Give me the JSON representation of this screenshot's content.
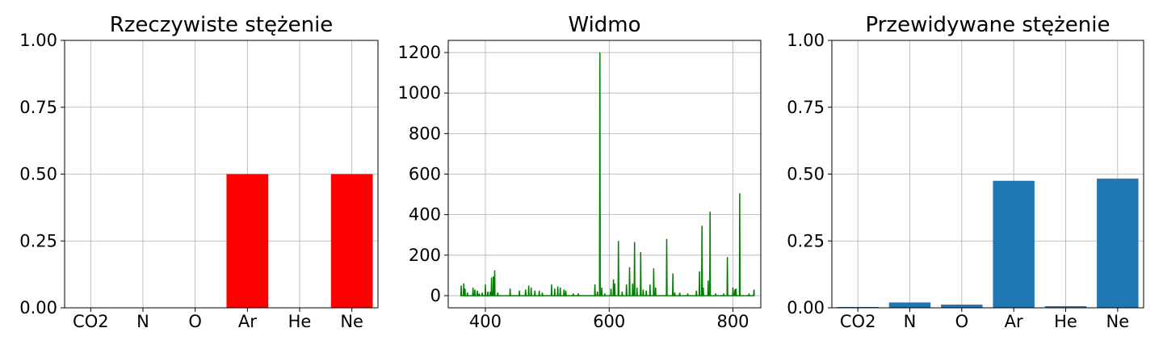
{
  "chart_data": [
    {
      "type": "bar",
      "title": "Rzeczywiste stężenie",
      "categories": [
        "CO2",
        "N",
        "O",
        "Ar",
        "He",
        "Ne"
      ],
      "values": [
        0,
        0,
        0,
        0.5,
        0,
        0.5
      ],
      "ylim": [
        0,
        1
      ],
      "yticks": [
        "0.00",
        "0.25",
        "0.50",
        "0.75",
        "1.00"
      ],
      "color": "#ff0000",
      "grid": true
    },
    {
      "type": "line",
      "title": "Widmo",
      "xlim": [
        340,
        845
      ],
      "ylim": [
        -60,
        1260
      ],
      "xticks": [
        400,
        600,
        800
      ],
      "yticks": [
        0,
        200,
        400,
        600,
        800,
        1000,
        1200
      ],
      "color": "#008000",
      "grid": true,
      "peaks": [
        [
          361,
          50
        ],
        [
          365,
          60
        ],
        [
          367,
          35
        ],
        [
          371,
          15
        ],
        [
          380,
          40
        ],
        [
          383,
          30
        ],
        [
          387,
          25
        ],
        [
          390,
          10
        ],
        [
          395,
          15
        ],
        [
          400,
          55
        ],
        [
          404,
          20
        ],
        [
          408,
          20
        ],
        [
          410,
          90
        ],
        [
          413,
          95
        ],
        [
          415,
          125
        ],
        [
          420,
          15
        ],
        [
          440,
          35
        ],
        [
          455,
          25
        ],
        [
          465,
          30
        ],
        [
          470,
          50
        ],
        [
          474,
          40
        ],
        [
          480,
          25
        ],
        [
          487,
          25
        ],
        [
          492,
          15
        ],
        [
          507,
          55
        ],
        [
          512,
          35
        ],
        [
          517,
          45
        ],
        [
          521,
          40
        ],
        [
          527,
          30
        ],
        [
          530,
          25
        ],
        [
          542,
          10
        ],
        [
          550,
          10
        ],
        [
          577,
          55
        ],
        [
          581,
          20
        ],
        [
          585,
          1200
        ],
        [
          588,
          40
        ],
        [
          593,
          10
        ],
        [
          603,
          35
        ],
        [
          607,
          80
        ],
        [
          609,
          60
        ],
        [
          615,
          270
        ],
        [
          621,
          20
        ],
        [
          628,
          55
        ],
        [
          633,
          140
        ],
        [
          638,
          60
        ],
        [
          641,
          265
        ],
        [
          645,
          40
        ],
        [
          651,
          215
        ],
        [
          655,
          30
        ],
        [
          660,
          25
        ],
        [
          666,
          55
        ],
        [
          672,
          135
        ],
        [
          675,
          40
        ],
        [
          693,
          280
        ],
        [
          703,
          110
        ],
        [
          706,
          15
        ],
        [
          714,
          15
        ],
        [
          727,
          10
        ],
        [
          741,
          25
        ],
        [
          746,
          120
        ],
        [
          750,
          345
        ],
        [
          752,
          40
        ],
        [
          760,
          75
        ],
        [
          763,
          415
        ],
        [
          772,
          10
        ],
        [
          785,
          10
        ],
        [
          791,
          190
        ],
        [
          800,
          40
        ],
        [
          803,
          30
        ],
        [
          805,
          35
        ],
        [
          811,
          505
        ],
        [
          826,
          10
        ],
        [
          834,
          30
        ]
      ]
    },
    {
      "type": "bar",
      "title": "Przewidywane stężenie",
      "categories": [
        "CO2",
        "N",
        "O",
        "Ar",
        "He",
        "Ne"
      ],
      "values": [
        0.003,
        0.02,
        0.012,
        0.475,
        0.006,
        0.483
      ],
      "ylim": [
        0,
        1
      ],
      "yticks": [
        "0.00",
        "0.25",
        "0.50",
        "0.75",
        "1.00"
      ],
      "color": "#1f77b4",
      "grid": true
    }
  ]
}
